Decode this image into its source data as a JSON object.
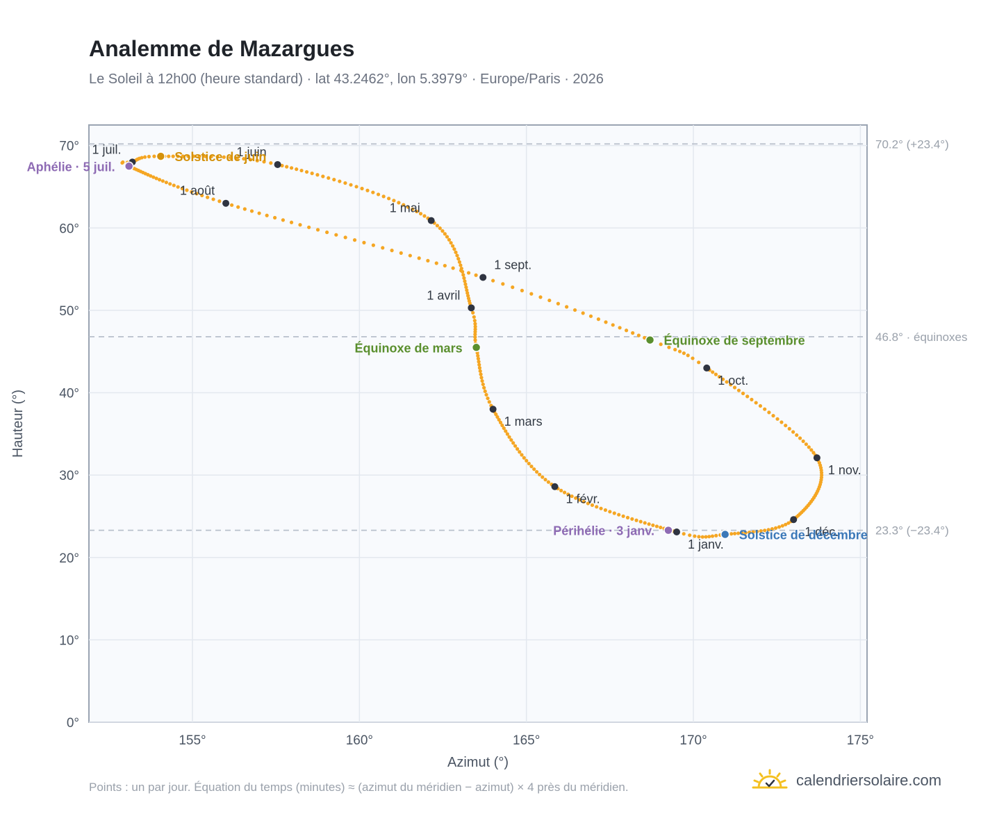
{
  "header": {
    "title": "Analemme de Mazargues",
    "subtitle": "Le Soleil à 12h00 (heure standard) · lat 43.2462°, lon 5.3979° · Europe/Paris · 2026"
  },
  "footer": {
    "note": "Points : un par jour. Équation du temps (minutes) ≈ (azimut du méridien − azimut) × 4 près du méridien.",
    "brand": "calendriersolaire.com",
    "brand_icon": "sun-logo-icon"
  },
  "colors": {
    "curve": "#f5a623",
    "month_marker": "#2f3441",
    "solstice_june": "#d4910a",
    "solstice_december": "#3b78b8",
    "equinox": "#5a8f2e",
    "aphelion_perihelion": "#8e6bb4",
    "reference_line": "#b8c0cc",
    "grid": "#e3e8ef",
    "plot_background": "#f8fafd",
    "plot_border": "#9aa4b2"
  },
  "chart_data": {
    "type": "scatter",
    "xlabel": "Azimut (°)",
    "ylabel": "Hauteur (°)",
    "xlim": [
      151.9,
      175.2
    ],
    "ylim": [
      0,
      72.5
    ],
    "x_ticks": [
      155,
      160,
      165,
      170,
      175
    ],
    "y_ticks": [
      0,
      10,
      20,
      30,
      40,
      50,
      60,
      70
    ],
    "x_tick_labels": [
      "155°",
      "160°",
      "165°",
      "170°",
      "175°"
    ],
    "y_tick_labels": [
      "0°",
      "10°",
      "20°",
      "30°",
      "40°",
      "50°",
      "60°",
      "70°"
    ],
    "grid": true,
    "daily_points_note": "un par jour",
    "curve_keypoints": [
      {
        "doy": 1,
        "az": 169.5,
        "alt": 23.1
      },
      {
        "doy": 32,
        "az": 165.85,
        "alt": 28.6
      },
      {
        "doy": 60,
        "az": 164.0,
        "alt": 38.0
      },
      {
        "doy": 79,
        "az": 163.5,
        "alt": 45.5
      },
      {
        "doy": 91,
        "az": 163.35,
        "alt": 50.3
      },
      {
        "doy": 121,
        "az": 162.15,
        "alt": 60.9
      },
      {
        "doy": 152,
        "az": 157.55,
        "alt": 67.7
      },
      {
        "doy": 172,
        "az": 154.05,
        "alt": 68.7
      },
      {
        "doy": 182,
        "az": 153.2,
        "alt": 68.0
      },
      {
        "doy": 186,
        "az": 153.1,
        "alt": 67.5
      },
      {
        "doy": 213,
        "az": 156.0,
        "alt": 63.0
      },
      {
        "doy": 244,
        "az": 163.7,
        "alt": 54.0
      },
      {
        "doy": 265,
        "az": 168.7,
        "alt": 46.4
      },
      {
        "doy": 274,
        "az": 170.4,
        "alt": 43.0
      },
      {
        "doy": 305,
        "az": 173.7,
        "alt": 32.1
      },
      {
        "doy": 335,
        "az": 173.0,
        "alt": 24.6
      },
      {
        "doy": 355,
        "az": 170.95,
        "alt": 22.8
      },
      {
        "doy": 366,
        "az": 169.5,
        "alt": 23.1
      }
    ],
    "month_markers": [
      {
        "label": "1 janv.",
        "az": 169.5,
        "alt": 23.1,
        "anchor": "below-right"
      },
      {
        "label": "1 févr.",
        "az": 165.85,
        "alt": 28.6,
        "anchor": "below-right"
      },
      {
        "label": "1 mars",
        "az": 164.0,
        "alt": 38.0,
        "anchor": "below-right"
      },
      {
        "label": "1 avril",
        "az": 163.35,
        "alt": 50.3,
        "anchor": "above-left"
      },
      {
        "label": "1 mai",
        "az": 162.15,
        "alt": 60.9,
        "anchor": "above-left"
      },
      {
        "label": "1 juin",
        "az": 157.55,
        "alt": 67.7,
        "anchor": "above-left"
      },
      {
        "label": "1 juil.",
        "az": 153.2,
        "alt": 68.0,
        "anchor": "above-left"
      },
      {
        "label": "1 août",
        "az": 156.0,
        "alt": 63.0,
        "anchor": "above-left"
      },
      {
        "label": "1 sept.",
        "az": 163.7,
        "alt": 54.0,
        "anchor": "above-right"
      },
      {
        "label": "1 oct.",
        "az": 170.4,
        "alt": 43.0,
        "anchor": "below-right"
      },
      {
        "label": "1 nov.",
        "az": 173.7,
        "alt": 32.1,
        "anchor": "below-right"
      },
      {
        "label": "1 déc.",
        "az": 173.0,
        "alt": 24.6,
        "anchor": "below-right"
      }
    ],
    "events": [
      {
        "label": "Solstice de juin",
        "az": 154.05,
        "alt": 68.7,
        "color_key": "solstice_june",
        "side": "right"
      },
      {
        "label": "Aphélie · 5 juil.",
        "az": 153.1,
        "alt": 67.5,
        "color_key": "aphelion_perihelion",
        "side": "left"
      },
      {
        "label": "Équinoxe de mars",
        "az": 163.5,
        "alt": 45.5,
        "color_key": "equinox",
        "side": "left"
      },
      {
        "label": "Équinoxe de septembre",
        "az": 168.7,
        "alt": 46.4,
        "color_key": "equinox",
        "side": "right"
      },
      {
        "label": "Périhélie · 3 janv.",
        "az": 169.25,
        "alt": 23.3,
        "color_key": "aphelion_perihelion",
        "side": "left"
      },
      {
        "label": "Solstice de décembre",
        "az": 170.95,
        "alt": 22.8,
        "color_key": "solstice_december",
        "side": "right"
      }
    ],
    "reference_lines": [
      {
        "alt": 70.2,
        "label": "70.2° (+23.4°)"
      },
      {
        "alt": 46.8,
        "label": "46.8° · équinoxes"
      },
      {
        "alt": 23.3,
        "label": "23.3° (−23.4°)"
      }
    ]
  }
}
